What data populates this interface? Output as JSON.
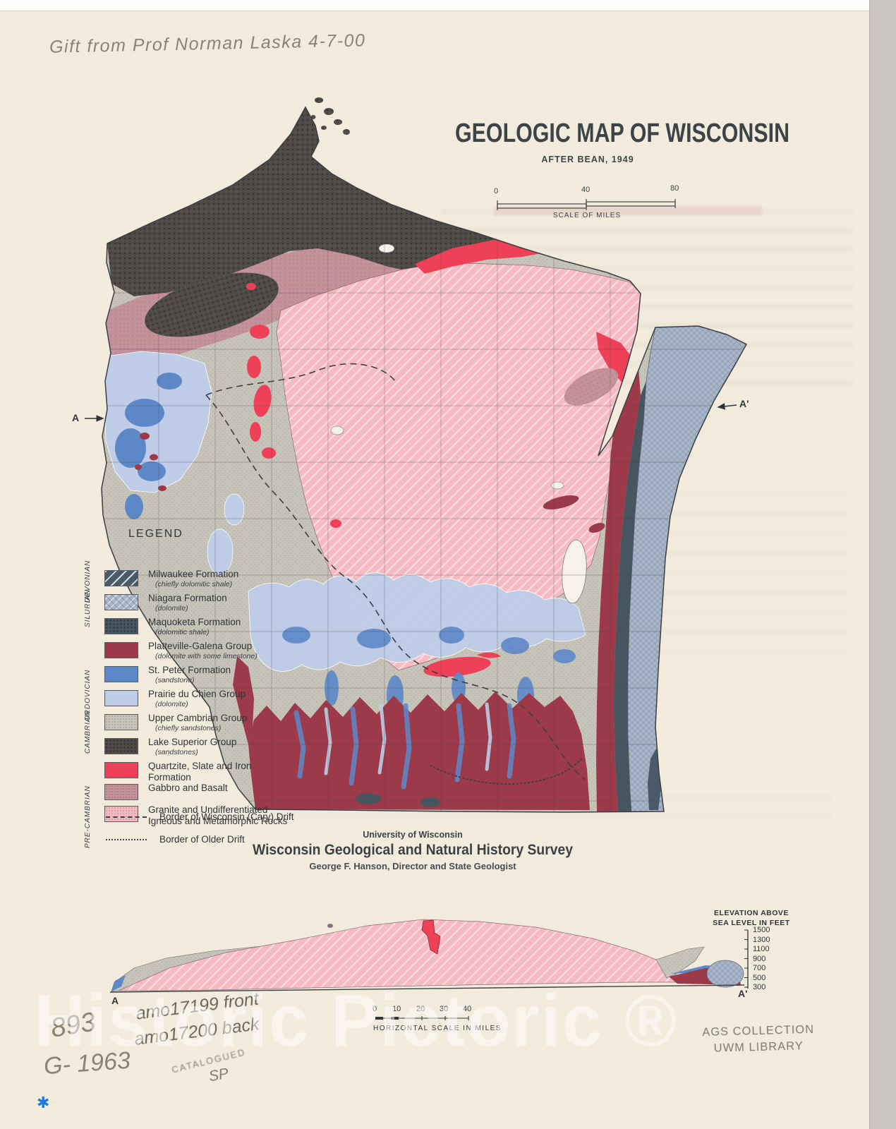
{
  "page": {
    "title": "GEOLOGIC MAP OF WISCONSIN",
    "subtitle": "AFTER BEAN, 1949",
    "watermark": "Historic Pictoric ®"
  },
  "scale_bar": {
    "ticks": [
      "0",
      "40",
      "80"
    ],
    "label": "SCALE OF MILES"
  },
  "legend": {
    "title": "LEGEND",
    "eras": [
      {
        "label": "DEVONIAN"
      },
      {
        "label": "SILURIAN"
      },
      {
        "label": "ORDOVICIAN"
      },
      {
        "label": "CAMBRIAN"
      },
      {
        "label": "PRE-CAMBRIAN"
      }
    ],
    "items": [
      {
        "label": "Milwaukee Formation",
        "sublabel": "(chiefly dolomitic shale)",
        "color": "#4a5a68",
        "pattern": "diag"
      },
      {
        "label": "Niagara Formation",
        "sublabel": "(dolomite)",
        "color": "#a9b6c9",
        "pattern": "cross"
      },
      {
        "label": "Maquoketa Formation",
        "sublabel": "(dolomitic shale)",
        "color": "#46555f",
        "pattern": "dots"
      },
      {
        "label": "Platteville-Galena Group",
        "sublabel": "(dolomite with some limestone)",
        "color": "#9c3a4a",
        "pattern": ""
      },
      {
        "label": "St. Peter Formation",
        "sublabel": "(sandstone)",
        "color": "#5d88c8",
        "pattern": ""
      },
      {
        "label": "Prairie du Chien Group",
        "sublabel": "(dolomite)",
        "color": "#bfcde8",
        "pattern": ""
      },
      {
        "label": "Upper Cambrian Group",
        "sublabel": "(chiefly sandstones)",
        "color": "#c7c4b9",
        "pattern": "stip"
      },
      {
        "label": "Lake Superior Group",
        "sublabel": "(sandstones)",
        "color": "#4e4a47",
        "pattern": "dots"
      },
      {
        "label": "Quartzite, Slate and Iron Formation",
        "sublabel": "",
        "color": "#ee4056",
        "pattern": ""
      },
      {
        "label": "Gabbro and Basalt",
        "sublabel": "",
        "color": "#c4929a",
        "pattern": "stip"
      },
      {
        "label": "Granite and Undifferentiated\nIgneous and Metamorphic Rocks",
        "sublabel": "",
        "color": "#f6bac2",
        "pattern": "stip"
      }
    ],
    "lines": [
      {
        "label": "Border of Wisconsin (Cary) Drift",
        "style": "dashed"
      },
      {
        "label": "Border of Older Drift",
        "style": "dotted"
      }
    ]
  },
  "map": {
    "label_a": "A",
    "label_a_prime": "A'"
  },
  "publisher": {
    "line1": "University of Wisconsin",
    "line2": "Wisconsin Geological and Natural History Survey",
    "line3": "George F. Hanson, Director and State Geologist"
  },
  "cross_section": {
    "axis_title": "ELEVATION ABOVE\nSEA LEVEL IN FEET",
    "elevation_ticks": [
      "1500",
      "1300",
      "1100",
      "900",
      "700",
      "500",
      "300"
    ],
    "left_label": "A",
    "right_label": "A'",
    "h_scale_ticks": [
      "0",
      "10",
      "20",
      "30",
      "40"
    ],
    "h_scale_label": "HORIZONTAL SCALE IN MILES"
  },
  "annotations": {
    "handwritten_top": "Gift from Prof Norman Laska 4-7-00",
    "catalog_number_line1": "893",
    "catalog_number_line2": "G- 1963",
    "pencil_line1": "amo17199 front",
    "pencil_line2": "amo17200 back",
    "stamp_small": "CATALOGUED",
    "stamp_initials": "SP",
    "stamp_right_line1": "AGS COLLECTION",
    "stamp_right_line2": "UWM LIBRARY",
    "asterisk": "✱"
  },
  "colors": {
    "paper": "#f3ecdd",
    "edge_gray": "#c9c5c1",
    "ink": "#3a3f45",
    "milwaukee": "#4a5a68",
    "niagara": "#a9b6c9",
    "maquoketa": "#46555f",
    "platteville": "#9c3a4a",
    "st_peter": "#5d88c8",
    "prairie": "#bfcde8",
    "cambrian": "#c7c4b9",
    "lake_superior": "#4e4a47",
    "quartzite": "#ee4056",
    "gabbro": "#c4929a",
    "granite": "#f6bac2",
    "lake_white": "#f6f2e8",
    "pencil": "#8a8375",
    "stamp": "#6d675c",
    "asterisk": "#1f7ae0"
  }
}
